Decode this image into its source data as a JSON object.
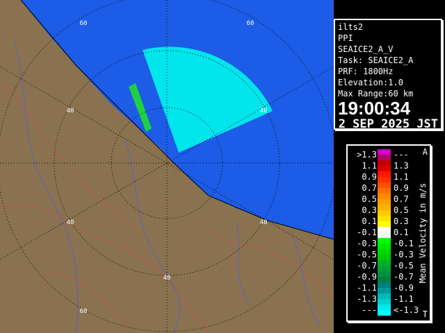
{
  "info": {
    "radar": "ilts2",
    "mode": "PPI",
    "product": "SEAICE2_A_V",
    "task": "Task: SEAICE2_A",
    "prf": "PRF: 1800Hz",
    "elevation": "Elevation:1.0",
    "max_range": "Max Range:60 km",
    "time": "19:00:34",
    "date": "2 SEP 2025 JST"
  },
  "legend": {
    "title": "Mean Velocity in m/s",
    "top_mark": "A",
    "bottom_mark": "T",
    "rows": [
      {
        "l": ">1.3",
        "r": "---",
        "c": [
          "#d000c8",
          "#b0006c"
        ]
      },
      {
        "l": "1.1",
        "r": "1.3",
        "c": [
          "#c00000",
          "#e00000"
        ]
      },
      {
        "l": "0.9",
        "r": "1.1",
        "c": [
          "#ff1800",
          "#ff3000"
        ]
      },
      {
        "l": "0.7",
        "r": "0.9",
        "c": [
          "#ff5000",
          "#ff7000"
        ]
      },
      {
        "l": "0.5",
        "r": "0.7",
        "c": [
          "#ff8800",
          "#ffa000"
        ]
      },
      {
        "l": "0.3",
        "r": "0.5",
        "c": [
          "#ffb000",
          "#ffc800"
        ]
      },
      {
        "l": "0.1",
        "r": "0.3",
        "c": [
          "#ffe000",
          "#ffff00"
        ]
      },
      {
        "l": "-0.1",
        "r": "0.1",
        "c": [
          "#ffffff",
          "#f4f4f4"
        ]
      },
      {
        "l": "-0.3",
        "r": "-0.1",
        "c": [
          "#00ff00",
          "#00e800"
        ]
      },
      {
        "l": "-0.5",
        "r": "-0.3",
        "c": [
          "#00d800",
          "#00c800"
        ]
      },
      {
        "l": "-0.7",
        "r": "-0.5",
        "c": [
          "#00b030",
          "#00a030"
        ]
      },
      {
        "l": "-0.9",
        "r": "-0.7",
        "c": [
          "#009040",
          "#008040"
        ]
      },
      {
        "l": "-1.1",
        "r": "-0.9",
        "c": [
          "#008080",
          "#009898"
        ]
      },
      {
        "l": "-1.3",
        "r": "-1.1",
        "c": [
          "#00b8b8",
          "#00d0d0"
        ]
      },
      {
        "l": "---",
        "r": "<-1.3",
        "c": [
          "#00e8e8",
          "#00ffff"
        ]
      }
    ]
  },
  "map": {
    "sea_color": "#1c5ce6",
    "land_color": "#8a7250",
    "echo_color": "#00ecec",
    "range_labels": [
      {
        "text": "60"
      },
      {
        "text": "60"
      },
      {
        "text": "40"
      },
      {
        "text": "40"
      },
      {
        "text": "40"
      },
      {
        "text": "40"
      },
      {
        "text": "40"
      },
      {
        "text": "60"
      }
    ]
  }
}
